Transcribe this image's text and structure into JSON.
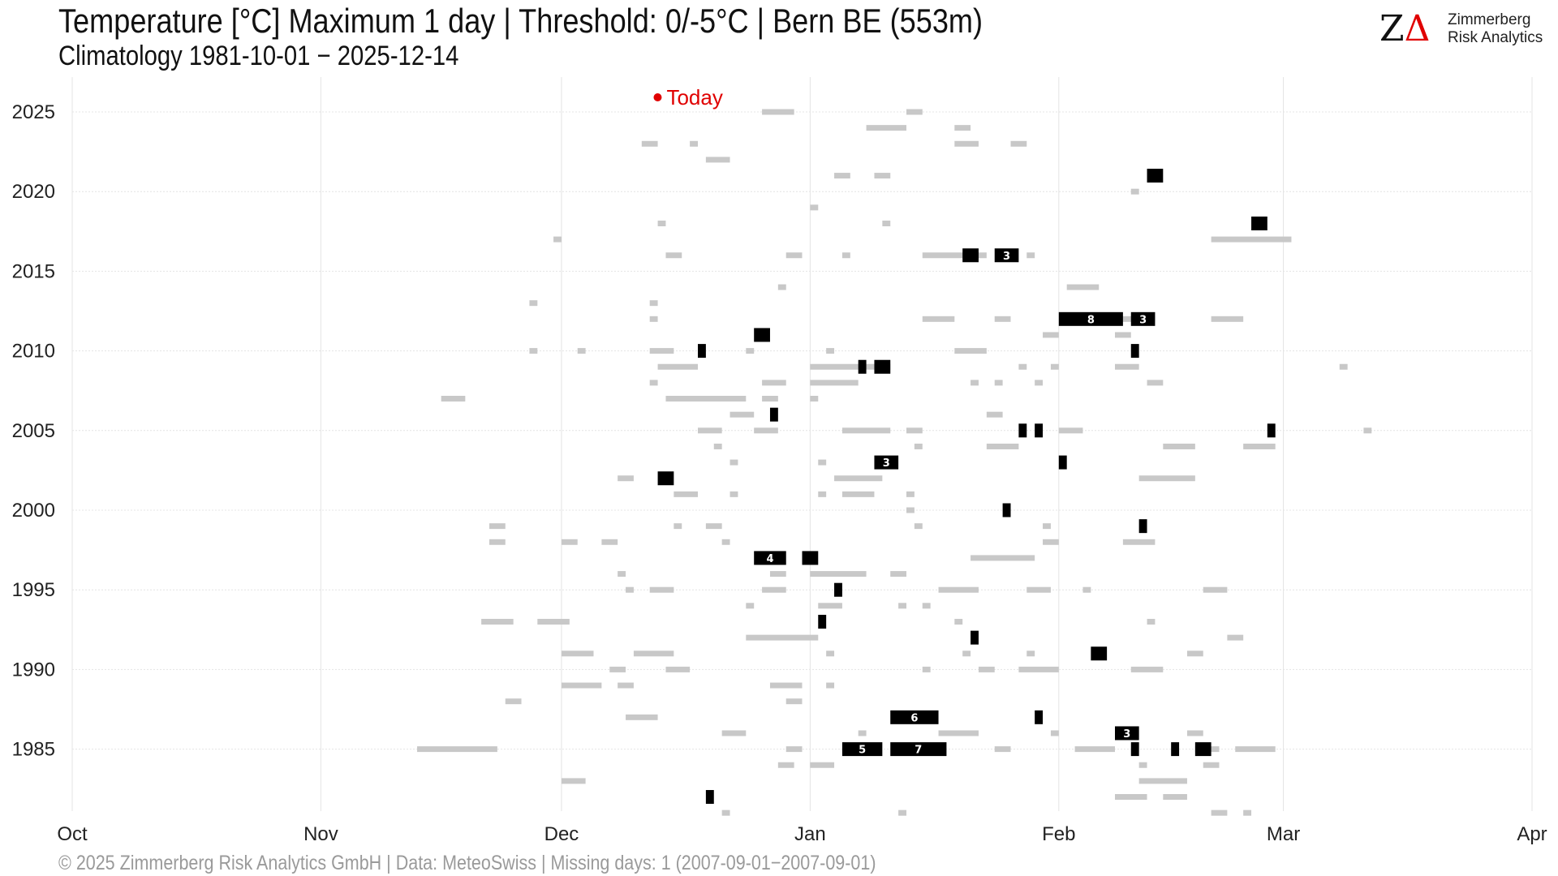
{
  "header": {
    "title": "Temperature [°C] Maximum 1 day | Threshold: 0/-5°C | Bern  BE (553m)",
    "subtitle": "Climatology 1981-10-01 − 2025-12-14"
  },
  "logo": {
    "mark": "ZΔ",
    "line1": "Zimmerberg",
    "line2": "Risk Analytics"
  },
  "footer": {
    "text": "©  2025 Zimmerberg Risk Analytics GmbH | Data: MeteoSwiss | Missing days: 1 (2007-09-01−2007-09-01)"
  },
  "colors": {
    "light": "#c8c8c8",
    "dark": "#000000",
    "today": "#e00000",
    "grid": "#e4e4e4"
  },
  "chart_data": {
    "type": "timeline",
    "title": "Temperature [°C] Maximum 1 day | Threshold: 0/-5°C | Bern  BE (553m)",
    "xlabel": "",
    "ylabel": "",
    "x_ticks": [
      "Oct",
      "Nov",
      "Dec",
      "Jan",
      "Feb",
      "Mar",
      "Apr"
    ],
    "x_tick_dates": [
      "10-01",
      "11-01",
      "12-01",
      "01-01",
      "02-01",
      "03-01",
      "04-01"
    ],
    "xlim": [
      "10-01",
      "04-01"
    ],
    "y_ticks": [
      1985,
      1990,
      1995,
      2000,
      2005,
      2010,
      2015,
      2020,
      2025
    ],
    "ylim": [
      1981,
      2025
    ],
    "grid": true,
    "today": {
      "label": "Today",
      "date": "12-14",
      "year": 2025
    },
    "threshold_light": "0°C",
    "threshold_dark": "-5°C",
    "light_segments": [
      [
        2025,
        "12-26",
        "12-29"
      ],
      [
        2025,
        "01-13",
        "01-14"
      ],
      [
        2024,
        "01-08",
        "01-12"
      ],
      [
        2024,
        "01-19",
        "01-20"
      ],
      [
        2023,
        "12-11",
        "12-12"
      ],
      [
        2023,
        "12-17",
        "12-17"
      ],
      [
        2023,
        "01-19",
        "01-21"
      ],
      [
        2023,
        "01-26",
        "01-27"
      ],
      [
        2022,
        "12-19",
        "12-21"
      ],
      [
        2021,
        "01-04",
        "01-05"
      ],
      [
        2021,
        "01-09",
        "01-10"
      ],
      [
        2020,
        "02-10",
        "02-10"
      ],
      [
        2019,
        "01-01",
        "01-01"
      ],
      [
        2018,
        "12-13",
        "12-13"
      ],
      [
        2018,
        "01-10",
        "01-10"
      ],
      [
        2017,
        "11-30",
        "11-30"
      ],
      [
        2017,
        "02-20",
        "02-29"
      ],
      [
        2016,
        "12-14",
        "12-15"
      ],
      [
        2016,
        "12-29",
        "12-30"
      ],
      [
        2016,
        "01-05",
        "01-05"
      ],
      [
        2016,
        "01-15",
        "01-22"
      ],
      [
        2016,
        "01-28",
        "01-28"
      ],
      [
        2014,
        "12-28",
        "12-28"
      ],
      [
        2014,
        "02-02",
        "02-05"
      ],
      [
        2013,
        "11-27",
        "11-27"
      ],
      [
        2013,
        "12-12",
        "12-12"
      ],
      [
        2012,
        "12-12",
        "12-12"
      ],
      [
        2012,
        "01-15",
        "01-18"
      ],
      [
        2012,
        "01-24",
        "01-25"
      ],
      [
        2012,
        "02-08",
        "02-12"
      ],
      [
        2012,
        "02-20",
        "02-23"
      ],
      [
        2011,
        "01-30",
        "01-31"
      ],
      [
        2011,
        "02-08",
        "02-09"
      ],
      [
        2010,
        "11-27",
        "11-27"
      ],
      [
        2010,
        "12-03",
        "12-03"
      ],
      [
        2010,
        "12-12",
        "12-14"
      ],
      [
        2010,
        "12-24",
        "12-24"
      ],
      [
        2010,
        "01-03",
        "01-03"
      ],
      [
        2010,
        "01-19",
        "01-22"
      ],
      [
        2009,
        "12-13",
        "12-17"
      ],
      [
        2009,
        "01-01",
        "01-10"
      ],
      [
        2009,
        "01-27",
        "01-27"
      ],
      [
        2009,
        "01-31",
        "01-31"
      ],
      [
        2009,
        "02-08",
        "02-10"
      ],
      [
        2009,
        "03-08",
        "03-08"
      ],
      [
        2008,
        "12-12",
        "12-12"
      ],
      [
        2008,
        "12-26",
        "12-28"
      ],
      [
        2008,
        "01-01",
        "01-06"
      ],
      [
        2008,
        "01-21",
        "01-21"
      ],
      [
        2008,
        "01-24",
        "01-24"
      ],
      [
        2008,
        "01-29",
        "01-29"
      ],
      [
        2008,
        "02-12",
        "02-13"
      ],
      [
        2007,
        "11-16",
        "11-18"
      ],
      [
        2007,
        "12-14",
        "12-23"
      ],
      [
        2007,
        "12-26",
        "12-27"
      ],
      [
        2007,
        "01-01",
        "01-01"
      ],
      [
        2006,
        "12-22",
        "12-24"
      ],
      [
        2006,
        "01-23",
        "01-24"
      ],
      [
        2005,
        "12-18",
        "12-20"
      ],
      [
        2005,
        "12-25",
        "12-27"
      ],
      [
        2005,
        "01-05",
        "01-10"
      ],
      [
        2005,
        "01-13",
        "01-14"
      ],
      [
        2005,
        "02-01",
        "02-03"
      ],
      [
        2005,
        "03-11",
        "03-11"
      ],
      [
        2004,
        "12-20",
        "12-20"
      ],
      [
        2004,
        "01-14",
        "01-14"
      ],
      [
        2004,
        "01-23",
        "01-26"
      ],
      [
        2004,
        "02-14",
        "02-17"
      ],
      [
        2004,
        "02-24",
        "02-27"
      ],
      [
        2003,
        "12-22",
        "12-22"
      ],
      [
        2003,
        "01-02",
        "01-02"
      ],
      [
        2002,
        "12-08",
        "12-09"
      ],
      [
        2002,
        "01-04",
        "01-09"
      ],
      [
        2002,
        "02-11",
        "02-17"
      ],
      [
        2001,
        "12-15",
        "12-17"
      ],
      [
        2001,
        "12-22",
        "12-22"
      ],
      [
        2001,
        "01-02",
        "01-02"
      ],
      [
        2001,
        "01-05",
        "01-08"
      ],
      [
        2001,
        "01-13",
        "01-13"
      ],
      [
        2000,
        "01-13",
        "01-13"
      ],
      [
        1999,
        "11-22",
        "11-23"
      ],
      [
        1999,
        "12-15",
        "12-15"
      ],
      [
        1999,
        "12-19",
        "12-20"
      ],
      [
        1999,
        "01-14",
        "01-14"
      ],
      [
        1999,
        "01-30",
        "01-30"
      ],
      [
        1998,
        "11-22",
        "11-23"
      ],
      [
        1998,
        "12-01",
        "12-02"
      ],
      [
        1998,
        "12-06",
        "12-07"
      ],
      [
        1998,
        "12-21",
        "12-21"
      ],
      [
        1998,
        "01-30",
        "01-31"
      ],
      [
        1998,
        "02-09",
        "02-12"
      ],
      [
        1997,
        "01-21",
        "01-28"
      ],
      [
        1996,
        "12-08",
        "12-08"
      ],
      [
        1996,
        "12-27",
        "12-28"
      ],
      [
        1996,
        "01-01",
        "01-07"
      ],
      [
        1996,
        "01-11",
        "01-12"
      ],
      [
        1995,
        "12-09",
        "12-09"
      ],
      [
        1995,
        "12-12",
        "12-14"
      ],
      [
        1995,
        "12-26",
        "12-28"
      ],
      [
        1995,
        "01-17",
        "01-21"
      ],
      [
        1995,
        "01-28",
        "01-30"
      ],
      [
        1995,
        "02-04",
        "02-04"
      ],
      [
        1995,
        "02-19",
        "02-21"
      ],
      [
        1994,
        "12-24",
        "12-24"
      ],
      [
        1994,
        "01-02",
        "01-04"
      ],
      [
        1994,
        "01-12",
        "01-12"
      ],
      [
        1994,
        "01-15",
        "01-15"
      ],
      [
        1993,
        "11-21",
        "11-24"
      ],
      [
        1993,
        "11-28",
        "12-01"
      ],
      [
        1993,
        "01-19",
        "01-19"
      ],
      [
        1993,
        "02-12",
        "02-12"
      ],
      [
        1992,
        "12-24",
        "01-01"
      ],
      [
        1992,
        "02-22",
        "02-23"
      ],
      [
        1991,
        "12-01",
        "12-04"
      ],
      [
        1991,
        "12-10",
        "12-14"
      ],
      [
        1991,
        "01-03",
        "01-03"
      ],
      [
        1991,
        "01-20",
        "01-20"
      ],
      [
        1991,
        "01-28",
        "01-28"
      ],
      [
        1991,
        "02-17",
        "02-18"
      ],
      [
        1990,
        "12-07",
        "12-08"
      ],
      [
        1990,
        "12-14",
        "12-16"
      ],
      [
        1990,
        "01-15",
        "01-15"
      ],
      [
        1990,
        "01-22",
        "01-23"
      ],
      [
        1990,
        "01-27",
        "01-31"
      ],
      [
        1990,
        "02-10",
        "02-13"
      ],
      [
        1989,
        "12-01",
        "12-05"
      ],
      [
        1989,
        "12-08",
        "12-09"
      ],
      [
        1989,
        "12-27",
        "12-30"
      ],
      [
        1989,
        "01-03",
        "01-03"
      ],
      [
        1988,
        "11-24",
        "11-25"
      ],
      [
        1988,
        "12-29",
        "12-30"
      ],
      [
        1987,
        "12-09",
        "12-12"
      ],
      [
        1986,
        "12-21",
        "12-23"
      ],
      [
        1986,
        "01-07",
        "01-07"
      ],
      [
        1986,
        "01-17",
        "01-21"
      ],
      [
        1986,
        "01-31",
        "01-31"
      ],
      [
        1986,
        "02-17",
        "02-18"
      ],
      [
        1985,
        "11-13",
        "11-22"
      ],
      [
        1985,
        "12-29",
        "12-30"
      ],
      [
        1985,
        "01-24",
        "01-25"
      ],
      [
        1985,
        "02-03",
        "02-07"
      ],
      [
        1985,
        "02-18",
        "02-20"
      ],
      [
        1985,
        "02-23",
        "02-27"
      ],
      [
        1984,
        "12-28",
        "12-29"
      ],
      [
        1984,
        "01-01",
        "01-03"
      ],
      [
        1984,
        "02-11",
        "02-11"
      ],
      [
        1984,
        "02-19",
        "02-20"
      ],
      [
        1983,
        "12-01",
        "12-03"
      ],
      [
        1983,
        "02-11",
        "02-16"
      ],
      [
        1982,
        "02-08",
        "02-11"
      ],
      [
        1982,
        "02-14",
        "02-16"
      ],
      [
        1981,
        "12-21",
        "12-21"
      ],
      [
        1981,
        "01-12",
        "01-12"
      ],
      [
        1981,
        "02-20",
        "02-21"
      ],
      [
        1981,
        "02-24",
        "02-24"
      ]
    ],
    "dark_segments": [
      [
        2021,
        "02-12",
        "02-13",
        null
      ],
      [
        2018,
        "02-25",
        "02-26",
        null
      ],
      [
        2016,
        "01-20",
        "01-21",
        null
      ],
      [
        2016,
        "01-24",
        "01-26",
        "3"
      ],
      [
        2012,
        "02-01",
        "02-08",
        "8"
      ],
      [
        2012,
        "02-10",
        "02-12",
        "3"
      ],
      [
        2011,
        "12-25",
        "12-26",
        null
      ],
      [
        2010,
        "12-18",
        "12-18",
        null
      ],
      [
        2010,
        "02-10",
        "02-10",
        null
      ],
      [
        2009,
        "01-07",
        "01-07",
        null
      ],
      [
        2009,
        "01-09",
        "01-10",
        null
      ],
      [
        2006,
        "12-27",
        "12-27",
        null
      ],
      [
        2005,
        "01-27",
        "01-27",
        null
      ],
      [
        2005,
        "01-29",
        "01-29",
        null
      ],
      [
        2005,
        "02-27",
        "02-27",
        null
      ],
      [
        2003,
        "01-09",
        "01-11",
        "3"
      ],
      [
        2003,
        "02-01",
        "02-01",
        null
      ],
      [
        2002,
        "12-13",
        "12-14",
        null
      ],
      [
        2000,
        "01-25",
        "01-25",
        null
      ],
      [
        1999,
        "02-11",
        "02-11",
        null
      ],
      [
        1997,
        "12-25",
        "12-28",
        "4"
      ],
      [
        1997,
        "12-31",
        "01-01",
        null
      ],
      [
        1995,
        "01-04",
        "01-04",
        null
      ],
      [
        1993,
        "01-02",
        "01-02",
        null
      ],
      [
        1992,
        "01-21",
        "01-21",
        null
      ],
      [
        1991,
        "02-05",
        "02-06",
        null
      ],
      [
        1987,
        "01-11",
        "01-16",
        "6"
      ],
      [
        1987,
        "01-29",
        "01-29",
        null
      ],
      [
        1986,
        "02-08",
        "02-10",
        "3"
      ],
      [
        1985,
        "01-05",
        "01-09",
        "5"
      ],
      [
        1985,
        "01-11",
        "01-17",
        "7"
      ],
      [
        1985,
        "02-10",
        "02-10",
        null
      ],
      [
        1985,
        "02-15",
        "02-15",
        null
      ],
      [
        1985,
        "02-18",
        "02-19",
        null
      ],
      [
        1982,
        "12-19",
        "12-19",
        null
      ]
    ]
  }
}
